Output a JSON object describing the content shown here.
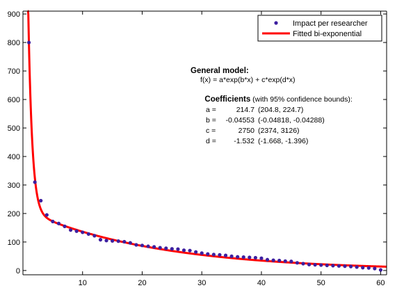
{
  "chart_data": {
    "type": "scatter",
    "title": "",
    "xlabel": "",
    "ylabel": "",
    "xlim": [
      0,
      61
    ],
    "ylim": [
      -15,
      910
    ],
    "xticks": [
      10,
      20,
      30,
      40,
      50,
      60
    ],
    "yticks": [
      0,
      100,
      200,
      300,
      400,
      500,
      600,
      700,
      800,
      900
    ],
    "grid": false,
    "legend_position": "top-right",
    "series": [
      {
        "name": "Impact per researcher",
        "kind": "points",
        "color": "#3d1fa0",
        "x": [
          1,
          2,
          3,
          4,
          5,
          6,
          7,
          8,
          9,
          10,
          11,
          12,
          13,
          14,
          15,
          16,
          17,
          18,
          19,
          20,
          21,
          22,
          23,
          24,
          25,
          26,
          27,
          28,
          29,
          30,
          31,
          32,
          33,
          34,
          35,
          36,
          37,
          38,
          39,
          40,
          41,
          42,
          43,
          44,
          45,
          46,
          47,
          48,
          49,
          50,
          51,
          52,
          53,
          54,
          55,
          56,
          57,
          58,
          59,
          60
        ],
        "y": [
          800,
          310,
          245,
          195,
          172,
          165,
          155,
          142,
          138,
          134,
          128,
          122,
          108,
          105,
          104,
          103,
          101,
          97,
          90,
          88,
          85,
          83,
          80,
          78,
          76,
          75,
          71,
          70,
          65,
          61,
          58,
          56,
          55,
          53,
          50,
          48,
          47,
          46,
          45,
          43,
          38,
          36,
          35,
          33,
          32,
          27,
          24,
          21,
          20,
          19,
          18,
          17,
          16,
          15,
          14,
          12,
          10,
          9,
          7,
          2
        ]
      },
      {
        "name": "Fitted bi-exponential",
        "kind": "line",
        "color": "#ff0000",
        "function": "a*exp(b*x) + c*exp(d*x)",
        "params": {
          "a": 214.7,
          "b": -0.04553,
          "c": 2750,
          "d": -1.532
        },
        "x_range": [
          0.8,
          61
        ]
      }
    ]
  },
  "annotation": {
    "general_model_title": "General model:",
    "formula": "f(x) = a*exp(b*x) + c*exp(d*x)",
    "coefficients_title": "Coefficients",
    "coefficients_suffix": " (with 95% confidence bounds):",
    "coefficients": [
      {
        "name": "a =",
        "value": "214.7",
        "bounds": "(204.8, 224.7)"
      },
      {
        "name": "b =",
        "value": "-0.04553",
        "bounds": "(-0.04818, -0.04288)"
      },
      {
        "name": "c =",
        "value": "2750",
        "bounds": "(2374, 3126)"
      },
      {
        "name": "d =",
        "value": "-1.532",
        "bounds": "(-1.668, -1.396)"
      }
    ]
  }
}
